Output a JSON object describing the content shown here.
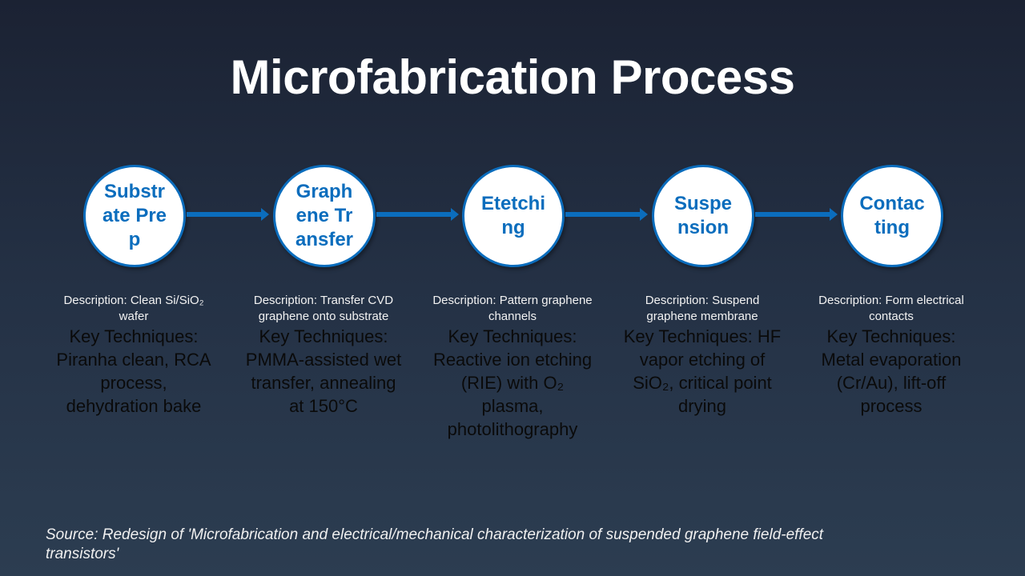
{
  "title": "Microfabrication Process",
  "colors": {
    "accent": "#0b6dbd",
    "circle_fill": "#ffffff",
    "background": "#1f2a3c"
  },
  "steps": [
    {
      "label": "Substrate Prep",
      "description": "Description: Clean Si/SiO₂ wafer",
      "techniques": "Key Techniques: Piranha clean, RCA process, dehydration bake"
    },
    {
      "label": "Graphene Transfer",
      "description": "Description: Transfer CVD graphene onto substrate",
      "techniques": "Key Techniques: PMMA-assisted wet transfer, annealing at 150°C"
    },
    {
      "label": "Etetching",
      "description": "Description: Pattern graphene channels",
      "techniques": "Key Techniques: Reactive ion etching (RIE) with O₂ plasma, photolithography"
    },
    {
      "label": "Suspension",
      "description": "Description: Suspend graphene membrane",
      "techniques": "Key Techniques: HF vapor etching of SiO₂, critical point drying"
    },
    {
      "label": "Contacting",
      "description": "Description: Form electrical contacts",
      "techniques": "Key Techniques: Metal evaporation (Cr/Au), lift-off process"
    }
  ],
  "source": "Source: Redesign of 'Microfabrication and electrical/mechanical characterization of suspended graphene field-effect transistors'"
}
